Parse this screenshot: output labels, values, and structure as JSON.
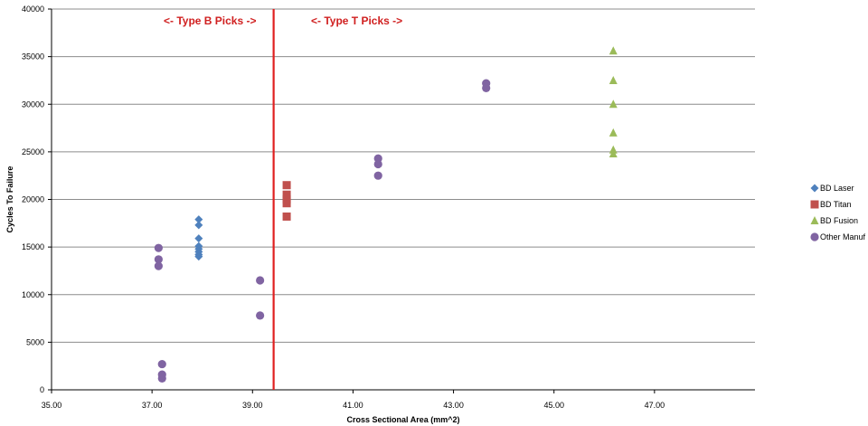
{
  "chart_data": {
    "type": "scatter",
    "title": "",
    "xlabel": "Cross Sectional Area (mm^2)",
    "ylabel": "Cycles To Failure",
    "xlim": [
      35,
      49
    ],
    "ylim": [
      0,
      40000
    ],
    "x_ticks": [
      35,
      37,
      39,
      41,
      43,
      45,
      47
    ],
    "x_tick_labels": [
      "35.00",
      "37.00",
      "39.00",
      "41.00",
      "43.00",
      "45.00",
      "47.00"
    ],
    "y_ticks": [
      0,
      5000,
      10000,
      15000,
      20000,
      25000,
      30000,
      35000,
      40000
    ],
    "y_tick_labels": [
      "0",
      "5000",
      "10000",
      "15000",
      "20000",
      "25000",
      "30000",
      "35000",
      "40000"
    ],
    "grid": "horizontal",
    "legend_position": "right",
    "series": [
      {
        "name": "BD Laser",
        "marker": "diamond",
        "color": "#4F81BD",
        "points": [
          [
            37.93,
            17900
          ],
          [
            37.93,
            17300
          ],
          [
            37.93,
            15900
          ],
          [
            37.93,
            15100
          ],
          [
            37.93,
            14800
          ],
          [
            37.93,
            14500
          ],
          [
            37.93,
            14200
          ],
          [
            37.93,
            14000
          ]
        ]
      },
      {
        "name": "BD Titan",
        "marker": "square",
        "color": "#C0504D",
        "points": [
          [
            39.68,
            21500
          ],
          [
            39.68,
            20500
          ],
          [
            39.68,
            20000
          ],
          [
            39.68,
            19600
          ],
          [
            39.68,
            18200
          ]
        ]
      },
      {
        "name": "BD Fusion",
        "marker": "triangle",
        "color": "#9BBB59",
        "points": [
          [
            46.18,
            35600
          ],
          [
            46.18,
            32500
          ],
          [
            46.18,
            30000
          ],
          [
            46.18,
            27000
          ],
          [
            46.18,
            25200
          ],
          [
            46.18,
            24800
          ]
        ]
      },
      {
        "name": "Other Manuf",
        "marker": "circle",
        "color": "#8064A2",
        "points": [
          [
            37.13,
            14900
          ],
          [
            37.13,
            13700
          ],
          [
            37.13,
            13000
          ],
          [
            37.2,
            2700
          ],
          [
            37.2,
            1600
          ],
          [
            37.2,
            1200
          ],
          [
            39.15,
            11500
          ],
          [
            39.15,
            7800
          ],
          [
            41.5,
            24300
          ],
          [
            41.5,
            23700
          ],
          [
            41.5,
            22500
          ],
          [
            43.65,
            32200
          ],
          [
            43.65,
            31700
          ]
        ]
      }
    ],
    "reference_line": {
      "x": 39.42,
      "color": "#E02020"
    },
    "annotations": [
      {
        "text": "<- Type B Picks ->",
        "color": "#D02020"
      },
      {
        "text": "<- Type T Picks ->",
        "color": "#D02020"
      }
    ]
  }
}
